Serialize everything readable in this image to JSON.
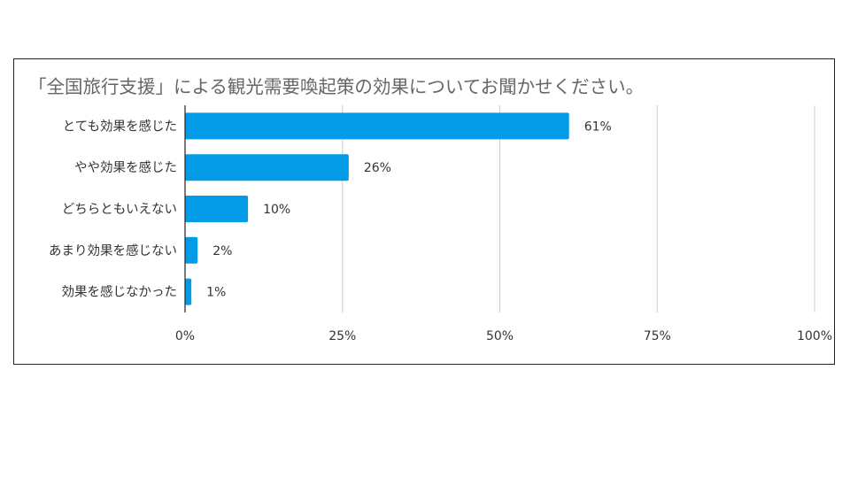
{
  "chart_data": {
    "type": "bar",
    "orientation": "horizontal",
    "title": "「全国旅行支援」による観光需要喚起策の効果についてお聞かせください。",
    "categories": [
      "とても効果を感じた",
      "やや効果を感じた",
      "どちらともいえない",
      "あまり効果を感じない",
      "効果を感じなかった"
    ],
    "values": [
      61,
      26,
      10,
      2,
      1
    ],
    "data_labels": [
      "61%",
      "26%",
      "10%",
      "2%",
      "1%"
    ],
    "xlim": [
      0,
      100
    ],
    "x_ticks": [
      0,
      25,
      50,
      75,
      100
    ],
    "x_tick_labels": [
      "0%",
      "25%",
      "50%",
      "75%",
      "100%"
    ],
    "grid": "vertical",
    "legend": "none",
    "bar_color": "#039be5",
    "grid_color": "#cccccc",
    "axis_color": "#222222"
  }
}
